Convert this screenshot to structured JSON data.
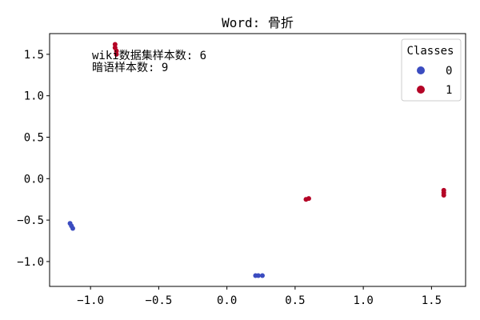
{
  "chart_data": {
    "type": "scatter",
    "title": "Word: 骨折",
    "xlabel": "",
    "ylabel": "",
    "xlim": [
      -1.3,
      1.75
    ],
    "ylim": [
      -1.3,
      1.75
    ],
    "xticks": [
      -1.0,
      -0.5,
      0.0,
      0.5,
      1.0,
      1.5
    ],
    "xtick_labels": [
      "−1.0",
      "−0.5",
      "0.0",
      "0.5",
      "1.0",
      "1.5"
    ],
    "yticks": [
      -1.0,
      -0.5,
      0.0,
      0.5,
      1.0,
      1.5
    ],
    "ytick_labels": [
      "−1.0",
      "−0.5",
      "0.0",
      "0.5",
      "1.0",
      "1.5"
    ],
    "grid": false,
    "legend": {
      "title": "Classes",
      "placement": "top-right",
      "entries": [
        {
          "label": "0",
          "color": "#3b4cc0"
        },
        {
          "label": "1",
          "color": "#b40426"
        }
      ]
    },
    "annotations": [
      "wiki数据集样本数: 6",
      "暗语样本数: 9"
    ],
    "series": [
      {
        "class": "0",
        "color": "#3b4cc0",
        "points": [
          [
            -1.15,
            -0.54
          ],
          [
            -1.14,
            -0.57
          ],
          [
            -1.13,
            -0.6
          ],
          [
            0.21,
            -1.17
          ],
          [
            0.23,
            -1.17
          ],
          [
            0.26,
            -1.17
          ]
        ]
      },
      {
        "class": "1",
        "color": "#b40426",
        "points": [
          [
            -0.82,
            1.62
          ],
          [
            -0.82,
            1.58
          ],
          [
            -0.81,
            1.54
          ],
          [
            -0.81,
            1.5
          ],
          [
            0.58,
            -0.25
          ],
          [
            0.6,
            -0.24
          ],
          [
            1.59,
            -0.14
          ],
          [
            1.59,
            -0.17
          ],
          [
            1.59,
            -0.2
          ]
        ]
      }
    ]
  }
}
